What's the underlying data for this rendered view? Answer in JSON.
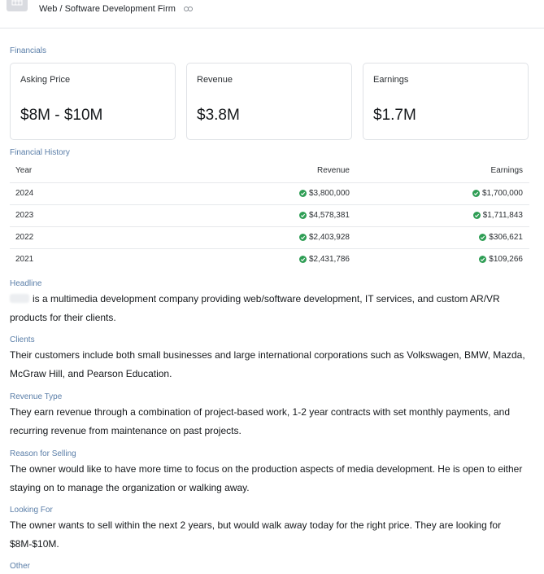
{
  "header": {
    "title": "Web / Software Development Firm",
    "link_icon": "link-icon"
  },
  "financials": {
    "label": "Financials",
    "cards": [
      {
        "label": "Asking Price",
        "value": "$8M - $10M"
      },
      {
        "label": "Revenue",
        "value": "$3.8M"
      },
      {
        "label": "Earnings",
        "value": "$1.7M"
      }
    ]
  },
  "history": {
    "label": "Financial History",
    "columns": [
      "Year",
      "Revenue",
      "Earnings"
    ],
    "rows": [
      {
        "year": "2024",
        "revenue": "$3,800,000",
        "earnings": "$1,700,000"
      },
      {
        "year": "2023",
        "revenue": "$4,578,381",
        "earnings": "$1,711,843"
      },
      {
        "year": "2022",
        "revenue": "$2,403,928",
        "earnings": "$306,621"
      },
      {
        "year": "2021",
        "revenue": "$2,431,786",
        "earnings": "$109,266"
      }
    ],
    "verified_color": "#2f9e55"
  },
  "details": [
    {
      "label": "Headline",
      "text": "is a multimedia development company providing web/software development, IT services, and custom AR/VR products for their clients."
    },
    {
      "label": "Clients",
      "text": "Their customers include both small businesses and large international corporations such as Volkswagen, BMW, Mazda, McGraw Hill, and Pearson Education."
    },
    {
      "label": "Revenue Type",
      "text": "They earn revenue through a combination of project-based work, 1-2 year contracts with set monthly payments, and recurring revenue from maintenance on past projects."
    },
    {
      "label": "Reason for Selling",
      "text": "The owner would like to have more time to focus on the production aspects of media development. He is open to either staying on to manage the organization or walking away."
    },
    {
      "label": "Looking For",
      "text": "The owner wants to sell within the next 2 years, but would walk away today for the right price. They are looking for $8M-$10M."
    },
    {
      "label": "Other",
      "text": ""
    }
  ]
}
